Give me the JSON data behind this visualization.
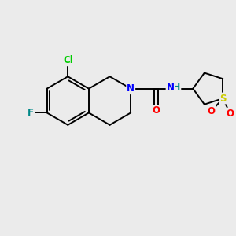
{
  "background_color": "#ebebeb",
  "bond_color": "#000000",
  "atom_colors": {
    "Cl": "#00cc00",
    "F": "#008888",
    "N": "#0000ff",
    "NH": "#008888",
    "O": "#ff0000",
    "S": "#cccc00",
    "C": "#000000"
  },
  "figsize": [
    3.0,
    3.0
  ],
  "dpi": 100,
  "lw": 1.4,
  "fontsize": 8.5
}
